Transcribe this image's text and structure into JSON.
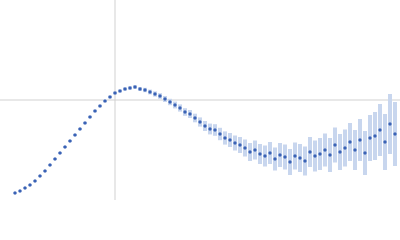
{
  "chart_data": {
    "type": "scatter",
    "color": "#3a62b5",
    "error_color": "#c8d6ee",
    "xlim": [
      0,
      400
    ],
    "ylim": [
      0,
      200
    ],
    "xticks": [
      115
    ],
    "yticks": [
      100
    ],
    "grid": true,
    "x": [
      15,
      20,
      25,
      30,
      35,
      40,
      45,
      50,
      55,
      60,
      65,
      70,
      75,
      80,
      85,
      90,
      95,
      100,
      105,
      110,
      115,
      120,
      125,
      130,
      135,
      140,
      145,
      150,
      155,
      160,
      165,
      170,
      175,
      180,
      185,
      190,
      195,
      200,
      205,
      210,
      215,
      220,
      225,
      230,
      235,
      240,
      245,
      250,
      255,
      260,
      265,
      270,
      275,
      280,
      285,
      290,
      295,
      300,
      305,
      310,
      315,
      320,
      325,
      330,
      335,
      340,
      345,
      350,
      355,
      360,
      365,
      370,
      375,
      380,
      385,
      390,
      395
    ],
    "values": [
      7,
      9,
      12,
      15,
      19,
      24,
      29,
      35,
      41,
      47,
      53,
      59,
      65,
      71,
      77,
      83,
      89,
      94,
      99,
      103,
      107,
      109,
      111,
      112,
      113,
      111,
      110,
      108,
      106,
      104,
      101,
      98,
      95,
      92,
      88,
      86,
      82,
      78,
      74,
      71,
      70,
      66,
      62,
      60,
      57,
      55,
      52,
      48,
      50,
      46,
      44,
      47,
      41,
      45,
      43,
      38,
      44,
      42,
      39,
      48,
      44,
      46,
      50,
      45,
      55,
      48,
      52,
      58,
      50,
      60,
      47,
      62,
      64,
      70,
      58,
      76,
      66
    ],
    "error": [
      0.5,
      0.5,
      0.6,
      0.6,
      0.7,
      0.7,
      0.8,
      0.8,
      0.9,
      0.9,
      1,
      1,
      1.1,
      1.1,
      1.2,
      1.2,
      1.3,
      1.3,
      1.4,
      1.4,
      1.5,
      1.6,
      1.7,
      1.8,
      1.9,
      2,
      2.2,
      2.4,
      2.6,
      2.8,
      3,
      3.2,
      3.4,
      3.6,
      3.8,
      4,
      4.3,
      4.6,
      5,
      5.4,
      5.8,
      6.2,
      6.6,
      7,
      7.5,
      8,
      8.5,
      9,
      9.5,
      10,
      10.5,
      11,
      11.5,
      12,
      12.5,
      13,
      13.5,
      14,
      14.5,
      15,
      15.5,
      16,
      16.5,
      17,
      17.5,
      18,
      18.5,
      19,
      20,
      21,
      22,
      23,
      24,
      26,
      28,
      30,
      32
    ]
  }
}
